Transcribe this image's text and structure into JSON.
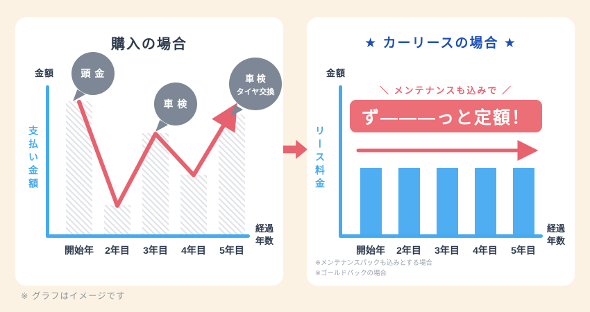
{
  "page": {
    "footnote": "※ グラフはイメージです"
  },
  "colors": {
    "background": "#fcf2e4",
    "panel": "#ffffff",
    "navy_text": "#2d3a4d",
    "lease_title_blue": "#1c4fb4",
    "axis_blue": "#45aaf0",
    "bar_blue": "#4fadf2",
    "line_red": "#e8616e",
    "banner_coral": "#ec6e76",
    "bubble_gray": "#7d8795",
    "hatch_gray": "#e1e3e7",
    "footnote_gray": "#9aa1ab"
  },
  "purchase": {
    "title": "購入の場合",
    "amount_label": "金額",
    "y_label": "支払い金額",
    "x_label": "経過\n年数",
    "categories": [
      "開始年",
      "2年目",
      "3年目",
      "4年目",
      "5年目"
    ],
    "bubbles": {
      "down_payment": "頭 金",
      "inspection": "車 検",
      "inspection_tire_line1": "車 検",
      "inspection_tire_line2": "タイヤ交換"
    }
  },
  "lease": {
    "title": "★ カーリースの場合 ★",
    "amount_label": "金額",
    "y_label": "リース料金",
    "x_label": "経過\n年数",
    "categories": [
      "開始年",
      "2年目",
      "3年目",
      "4年目",
      "5年目"
    ],
    "callout": "＼ メンテナンスも込みで ／",
    "banner": "ず―――っと定額！",
    "footnotes": [
      "※メンテナンスパックも込みとする場合",
      "※ゴールドパックの場合"
    ]
  },
  "chart_data": [
    {
      "type": "bar",
      "title": "購入の場合",
      "categories": [
        "開始年",
        "2年目",
        "3年目",
        "4年目",
        "5年目"
      ],
      "series": [
        {
          "name": "支払い金額（斜線棒）",
          "values": [
            100,
            22,
            76,
            45,
            90
          ]
        },
        {
          "name": "支払い金額（折れ線・矢印付き）",
          "values": [
            100,
            22,
            76,
            45,
            90
          ]
        }
      ],
      "xlabel": "経過年数",
      "ylabel": "支払い金額",
      "ylim": [
        0,
        110
      ],
      "grid": false,
      "legend_position": "none",
      "annotations": [
        "頭金",
        "車検",
        "車検・タイヤ交換"
      ]
    },
    {
      "type": "bar",
      "title": "★ カーリースの場合 ★",
      "categories": [
        "開始年",
        "2年目",
        "3年目",
        "4年目",
        "5年目"
      ],
      "series": [
        {
          "name": "リース料金",
          "values": [
            50,
            50,
            50,
            50,
            50
          ]
        }
      ],
      "xlabel": "経過年数",
      "ylabel": "リース料金",
      "ylim": [
        0,
        110
      ],
      "grid": false,
      "legend_position": "none",
      "annotations": [
        "メンテナンスも込みで",
        "ず―――っと定額！"
      ]
    }
  ]
}
